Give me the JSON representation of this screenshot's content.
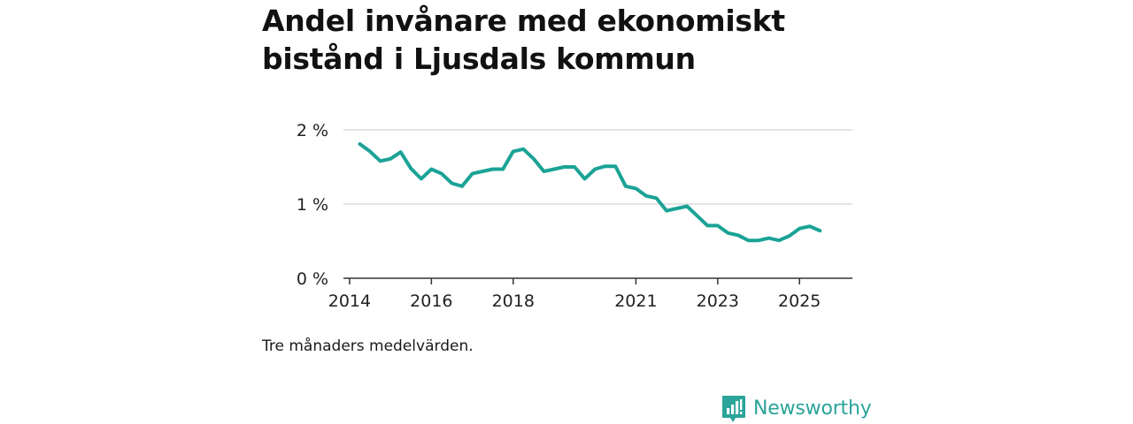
{
  "title": "Andel invånare med ekonomiskt bistånd i Ljusdals kommun",
  "footnote": "Tre månaders medelvärden.",
  "brand": {
    "name": "Newsworthy",
    "logo_icon": "bar-chart-logo-icon",
    "color": "#2ba49a"
  },
  "colors": {
    "line": "#1aa396",
    "grid": "#dcdcdc",
    "axis": "#333333",
    "text": "#222222"
  },
  "chart_data": {
    "type": "line",
    "title": "Andel invånare med ekonomiskt bistånd i Ljusdals kommun",
    "xlabel": "",
    "ylabel": "",
    "unit": "%",
    "grid": true,
    "xlim": [
      2013.85,
      2026.25
    ],
    "ylim": [
      0,
      2
    ],
    "y_ticks": [
      {
        "value": 0,
        "label": "0 %"
      },
      {
        "value": 1,
        "label": "1 %"
      },
      {
        "value": 2,
        "label": "2 %"
      }
    ],
    "x_ticks": [
      {
        "value": 2014,
        "label": "2014"
      },
      {
        "value": 2016,
        "label": "2016"
      },
      {
        "value": 2018,
        "label": "2018"
      },
      {
        "value": 2021,
        "label": "2021"
      },
      {
        "value": 2023,
        "label": "2023"
      },
      {
        "value": 2025,
        "label": "2025"
      }
    ],
    "series": [
      {
        "name": "Andel invånare med ekonomiskt bistånd",
        "x": [
          2014.25,
          2014.5,
          2014.75,
          2015.0,
          2015.25,
          2015.5,
          2015.75,
          2016.0,
          2016.25,
          2016.5,
          2016.75,
          2017.0,
          2017.25,
          2017.5,
          2017.75,
          2018.0,
          2018.25,
          2018.5,
          2018.75,
          2019.0,
          2019.25,
          2019.5,
          2019.75,
          2020.0,
          2020.25,
          2020.5,
          2020.75,
          2021.0,
          2021.25,
          2021.5,
          2021.75,
          2022.0,
          2022.25,
          2022.5,
          2022.75,
          2023.0,
          2023.25,
          2023.5,
          2023.75,
          2024.0,
          2024.25,
          2024.5,
          2024.75,
          2025.0,
          2025.25,
          2025.5
        ],
        "values": [
          1.81,
          1.71,
          1.58,
          1.61,
          1.7,
          1.48,
          1.34,
          1.47,
          1.41,
          1.28,
          1.24,
          1.41,
          1.44,
          1.47,
          1.47,
          1.71,
          1.74,
          1.61,
          1.44,
          1.47,
          1.5,
          1.5,
          1.34,
          1.47,
          1.51,
          1.51,
          1.24,
          1.21,
          1.11,
          1.08,
          0.91,
          0.94,
          0.97,
          0.84,
          0.71,
          0.71,
          0.61,
          0.58,
          0.51,
          0.51,
          0.54,
          0.51,
          0.57,
          0.67,
          0.7,
          0.64
        ]
      }
    ]
  }
}
